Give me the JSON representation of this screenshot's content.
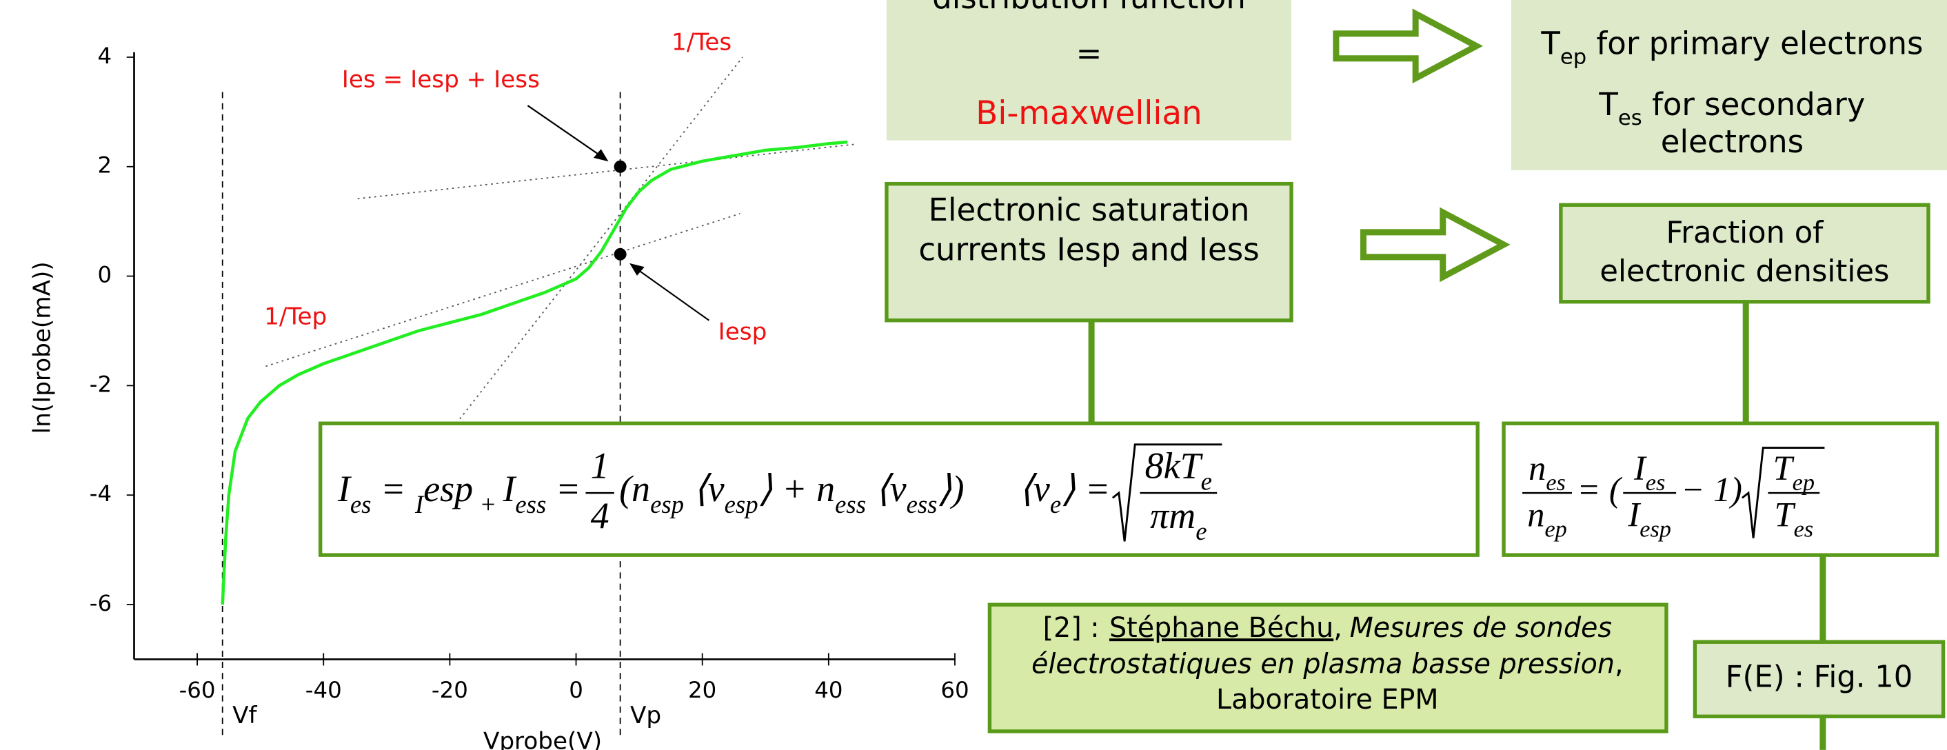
{
  "chart_data": {
    "type": "line",
    "x_label": "Vprobe(V)",
    "y_label": "ln(Iprobe(mA))",
    "x": [
      -56,
      -55.5,
      -55,
      -54,
      -52,
      -50,
      -47,
      -44,
      -40,
      -35,
      -30,
      -25,
      -20,
      -15,
      -10,
      -5,
      0,
      2,
      4,
      6,
      8,
      10,
      12,
      15,
      20,
      25,
      30,
      35,
      40,
      43
    ],
    "series": [
      {
        "color": "#22ee22",
        "values": [
          -6,
          -4.8,
          -4,
          -3.2,
          -2.6,
          -2.3,
          -2.0,
          -1.8,
          -1.6,
          -1.4,
          -1.2,
          -1.0,
          -0.85,
          -0.7,
          -0.5,
          -0.3,
          -0.05,
          0.15,
          0.45,
          0.85,
          1.25,
          1.55,
          1.75,
          1.95,
          2.1,
          2.2,
          2.3,
          2.35,
          2.42,
          2.45
        ]
      }
    ],
    "markers": {
      "x": [
        7,
        7
      ],
      "y": [
        2,
        0.4
      ]
    },
    "vlines": {
      "x": [
        -56,
        7
      ],
      "labels": [
        "Vf",
        "Vp"
      ]
    },
    "annotations": [
      "Ies = Iesp + Iess",
      "1/Tes",
      "1/Tep",
      "Iesp"
    ],
    "xlim": [
      -70,
      60
    ],
    "xticks": [
      -60,
      -40,
      -20,
      0,
      20,
      40,
      60
    ],
    "ylim": [
      -7,
      4
    ],
    "yticks": [
      -6,
      -4,
      -2,
      0,
      2,
      4
    ]
  },
  "slide": {
    "distribution_box": [
      "distribution function",
      "=",
      "Bi-maxwellian"
    ],
    "temperature_box": [
      [
        "T",
        "ep",
        " for primary electrons"
      ],
      [
        "T",
        "es",
        " for secondary"
      ],
      [
        "electrons"
      ]
    ],
    "saturation_box": [
      "Electronic saturation",
      "currents Iesp and Iess"
    ],
    "fraction_box": [
      "Fraction of",
      "electronic densities"
    ],
    "formula_1": {
      "lhs": [
        "I",
        "es",
        " = ",
        "I",
        "esp",
        " + ",
        "I",
        "ess",
        " = "
      ],
      "frac": [
        [
          "1"
        ],
        [
          "4"
        ]
      ],
      "rest": [
        "(n",
        "esp",
        " ⟨v",
        "esp",
        "⟩ + n",
        "ess",
        " ⟨v",
        "ess",
        "⟩)"
      ],
      "ve_lhs": [
        "⟨v",
        "e",
        "⟩ = "
      ],
      "sqrt": [
        [
          "8kT",
          "e"
        ],
        [
          "πm",
          "e"
        ]
      ]
    },
    "formula_2": {
      "lhs": [
        [
          "n",
          "es"
        ],
        [
          "n",
          "ep"
        ]
      ],
      "mid1": [
        " = ("
      ],
      "frac": [
        [
          "I",
          "es"
        ],
        [
          "I",
          "esp"
        ]
      ],
      "mid2": [
        " − 1)"
      ],
      "sqrt": [
        [
          "T",
          "ep"
        ],
        [
          "T",
          "es"
        ]
      ]
    },
    "citation": [
      [
        "[2] :",
        "Stéphane Béchu",
        ",",
        "Mesures de sondes"
      ],
      [
        "électrostatiques en plasma basse pression",
        ","
      ],
      [
        "Laboratoire EPM"
      ]
    ],
    "figure_ref": "F(E) : Fig. 10"
  }
}
